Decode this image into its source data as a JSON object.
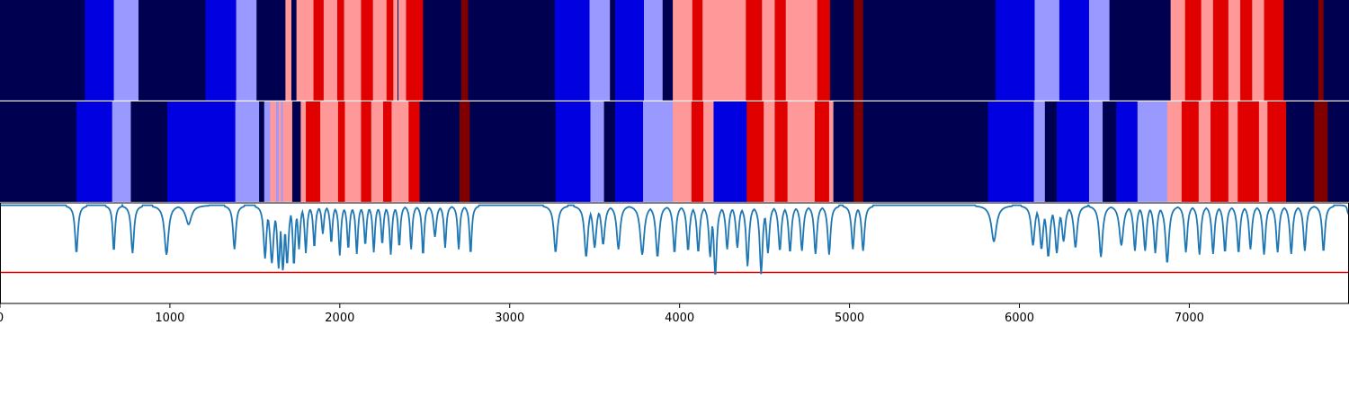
{
  "chart_data": {
    "type": "heatmap",
    "title": "",
    "xlabel": "",
    "x_range": [
      0,
      7940
    ],
    "x_ticks": [
      0,
      1000,
      2000,
      3000,
      4000,
      5000,
      6000,
      7000
    ],
    "x_tick_labels": [
      "0",
      "1000",
      "2000",
      "3000",
      "4000",
      "5000",
      "6000",
      "7000"
    ],
    "palette": {
      "0": "#000050",
      "1": "#0000e0",
      "2": "#9999ff",
      "3": "#ff9999",
      "4": "#e00000",
      "5": "#800000"
    },
    "tracks": [
      {
        "segments": [
          [
            0,
            500,
            0
          ],
          [
            500,
            670,
            1
          ],
          [
            670,
            815,
            2
          ],
          [
            815,
            1210,
            0
          ],
          [
            1210,
            1390,
            1
          ],
          [
            1390,
            1510,
            2
          ],
          [
            1510,
            1680,
            0
          ],
          [
            1680,
            1715,
            3
          ],
          [
            1715,
            1745,
            0
          ],
          [
            1745,
            1845,
            3
          ],
          [
            1845,
            1905,
            4
          ],
          [
            1905,
            1985,
            3
          ],
          [
            1985,
            2025,
            4
          ],
          [
            2025,
            2125,
            3
          ],
          [
            2125,
            2195,
            4
          ],
          [
            2195,
            2275,
            3
          ],
          [
            2275,
            2315,
            4
          ],
          [
            2315,
            2340,
            3
          ],
          [
            2340,
            2345,
            0
          ],
          [
            2345,
            2390,
            3
          ],
          [
            2390,
            2490,
            4
          ],
          [
            2490,
            2715,
            0
          ],
          [
            2715,
            2755,
            5
          ],
          [
            2755,
            3265,
            0
          ],
          [
            3265,
            3470,
            1
          ],
          [
            3470,
            3590,
            2
          ],
          [
            3590,
            3620,
            0
          ],
          [
            3620,
            3790,
            1
          ],
          [
            3790,
            3900,
            2
          ],
          [
            3900,
            3960,
            0
          ],
          [
            3960,
            4075,
            3
          ],
          [
            4075,
            4135,
            4
          ],
          [
            4135,
            4390,
            3
          ],
          [
            4390,
            4485,
            4
          ],
          [
            4485,
            4560,
            3
          ],
          [
            4560,
            4625,
            4
          ],
          [
            4625,
            4810,
            3
          ],
          [
            4810,
            4885,
            4
          ],
          [
            4885,
            5025,
            0
          ],
          [
            5025,
            5080,
            5
          ],
          [
            5080,
            5860,
            0
          ],
          [
            5860,
            6090,
            1
          ],
          [
            6090,
            6235,
            2
          ],
          [
            6235,
            6410,
            1
          ],
          [
            6410,
            6530,
            2
          ],
          [
            6530,
            6890,
            0
          ],
          [
            6890,
            6975,
            3
          ],
          [
            6975,
            7070,
            4
          ],
          [
            7070,
            7140,
            3
          ],
          [
            7140,
            7230,
            4
          ],
          [
            7230,
            7300,
            3
          ],
          [
            7300,
            7370,
            4
          ],
          [
            7370,
            7440,
            3
          ],
          [
            7440,
            7555,
            4
          ],
          [
            7555,
            7760,
            0
          ],
          [
            7760,
            7790,
            5
          ],
          [
            7790,
            7940,
            0
          ]
        ]
      },
      {
        "segments": [
          [
            0,
            450,
            0
          ],
          [
            450,
            660,
            1
          ],
          [
            660,
            770,
            2
          ],
          [
            770,
            985,
            0
          ],
          [
            985,
            1385,
            1
          ],
          [
            1385,
            1525,
            2
          ],
          [
            1525,
            1555,
            0
          ],
          [
            1555,
            1590,
            2
          ],
          [
            1590,
            1625,
            3
          ],
          [
            1625,
            1640,
            2
          ],
          [
            1640,
            1655,
            3
          ],
          [
            1655,
            1665,
            2
          ],
          [
            1665,
            1720,
            3
          ],
          [
            1720,
            1770,
            0
          ],
          [
            1770,
            1800,
            3
          ],
          [
            1800,
            1885,
            4
          ],
          [
            1885,
            1990,
            3
          ],
          [
            1990,
            2030,
            4
          ],
          [
            2030,
            2125,
            3
          ],
          [
            2125,
            2185,
            4
          ],
          [
            2185,
            2255,
            3
          ],
          [
            2255,
            2305,
            4
          ],
          [
            2305,
            2405,
            3
          ],
          [
            2405,
            2470,
            4
          ],
          [
            2470,
            2705,
            0
          ],
          [
            2705,
            2765,
            5
          ],
          [
            2765,
            3270,
            0
          ],
          [
            3270,
            3475,
            1
          ],
          [
            3475,
            3555,
            2
          ],
          [
            3555,
            3620,
            0
          ],
          [
            3620,
            3785,
            1
          ],
          [
            3785,
            3960,
            2
          ],
          [
            3960,
            4070,
            3
          ],
          [
            4070,
            4140,
            4
          ],
          [
            4140,
            4200,
            3
          ],
          [
            4200,
            4395,
            1
          ],
          [
            4395,
            4495,
            4
          ],
          [
            4495,
            4560,
            3
          ],
          [
            4560,
            4635,
            4
          ],
          [
            4635,
            4795,
            3
          ],
          [
            4795,
            4880,
            4
          ],
          [
            4880,
            4905,
            3
          ],
          [
            4905,
            5025,
            0
          ],
          [
            5025,
            5080,
            5
          ],
          [
            5080,
            5815,
            0
          ],
          [
            5815,
            6085,
            1
          ],
          [
            6085,
            6150,
            2
          ],
          [
            6150,
            6220,
            0
          ],
          [
            6220,
            6410,
            1
          ],
          [
            6410,
            6490,
            2
          ],
          [
            6490,
            6570,
            0
          ],
          [
            6570,
            6695,
            1
          ],
          [
            6695,
            6870,
            2
          ],
          [
            6870,
            6955,
            3
          ],
          [
            6955,
            7055,
            4
          ],
          [
            7055,
            7125,
            3
          ],
          [
            7125,
            7230,
            4
          ],
          [
            7230,
            7285,
            3
          ],
          [
            7285,
            7410,
            4
          ],
          [
            7410,
            7460,
            3
          ],
          [
            7460,
            7570,
            4
          ],
          [
            7570,
            7735,
            0
          ],
          [
            7735,
            7815,
            5
          ],
          [
            7815,
            7940,
            0
          ]
        ]
      }
    ],
    "signal": {
      "color": "#1f77b4",
      "ylim": [
        -0.3,
        1.0
      ],
      "threshold": 0.1,
      "threshold_color": "#e00000",
      "baseline": 0.97,
      "dips": [
        [
          450,
          0.35,
          10
        ],
        [
          670,
          0.37,
          8
        ],
        [
          780,
          0.35,
          10
        ],
        [
          980,
          0.33,
          14
        ],
        [
          1110,
          0.72,
          20
        ],
        [
          1380,
          0.4,
          10
        ],
        [
          1560,
          0.28,
          10
        ],
        [
          1600,
          0.22,
          12
        ],
        [
          1640,
          0.15,
          10
        ],
        [
          1665,
          0.12,
          10
        ],
        [
          1690,
          0.2,
          10
        ],
        [
          1730,
          0.18,
          8
        ],
        [
          1760,
          0.4,
          8
        ],
        [
          1800,
          0.35,
          8
        ],
        [
          1850,
          0.42,
          8
        ],
        [
          1900,
          0.6,
          8
        ],
        [
          1950,
          0.48,
          8
        ],
        [
          2000,
          0.32,
          8
        ],
        [
          2050,
          0.4,
          8
        ],
        [
          2100,
          0.34,
          8
        ],
        [
          2150,
          0.45,
          8
        ],
        [
          2200,
          0.36,
          8
        ],
        [
          2250,
          0.46,
          8
        ],
        [
          2300,
          0.33,
          8
        ],
        [
          2350,
          0.43,
          8
        ],
        [
          2420,
          0.4,
          8
        ],
        [
          2490,
          0.32,
          8
        ],
        [
          2560,
          0.56,
          10
        ],
        [
          2620,
          0.42,
          8
        ],
        [
          2700,
          0.4,
          8
        ],
        [
          2770,
          0.34,
          8
        ],
        [
          3270,
          0.36,
          12
        ],
        [
          3450,
          0.3,
          12
        ],
        [
          3500,
          0.42,
          12
        ],
        [
          3550,
          0.46,
          12
        ],
        [
          3640,
          0.4,
          12
        ],
        [
          3780,
          0.33,
          14
        ],
        [
          3870,
          0.3,
          12
        ],
        [
          3970,
          0.35,
          10
        ],
        [
          4050,
          0.38,
          10
        ],
        [
          4110,
          0.36,
          10
        ],
        [
          4180,
          0.3,
          10
        ],
        [
          4210,
          0.05,
          10
        ],
        [
          4280,
          0.4,
          10
        ],
        [
          4340,
          0.42,
          10
        ],
        [
          4400,
          0.18,
          10
        ],
        [
          4480,
          0.08,
          10
        ],
        [
          4520,
          0.35,
          10
        ],
        [
          4590,
          0.38,
          10
        ],
        [
          4650,
          0.36,
          10
        ],
        [
          4720,
          0.38,
          10
        ],
        [
          4800,
          0.34,
          10
        ],
        [
          4880,
          0.33,
          10
        ],
        [
          5020,
          0.4,
          10
        ],
        [
          5080,
          0.38,
          10
        ],
        [
          5850,
          0.5,
          18
        ],
        [
          6080,
          0.45,
          12
        ],
        [
          6130,
          0.4,
          12
        ],
        [
          6170,
          0.3,
          12
        ],
        [
          6220,
          0.35,
          12
        ],
        [
          6260,
          0.5,
          12
        ],
        [
          6330,
          0.42,
          12
        ],
        [
          6480,
          0.3,
          12
        ],
        [
          6600,
          0.45,
          14
        ],
        [
          6680,
          0.38,
          10
        ],
        [
          6740,
          0.38,
          10
        ],
        [
          6800,
          0.35,
          10
        ],
        [
          6870,
          0.22,
          12
        ],
        [
          6980,
          0.36,
          10
        ],
        [
          7060,
          0.33,
          10
        ],
        [
          7140,
          0.34,
          10
        ],
        [
          7210,
          0.36,
          10
        ],
        [
          7290,
          0.35,
          10
        ],
        [
          7360,
          0.4,
          10
        ],
        [
          7440,
          0.33,
          10
        ],
        [
          7520,
          0.36,
          10
        ],
        [
          7600,
          0.34,
          10
        ],
        [
          7680,
          0.38,
          10
        ],
        [
          7790,
          0.37,
          10
        ],
        [
          7935,
          0.86,
          6
        ]
      ]
    }
  }
}
